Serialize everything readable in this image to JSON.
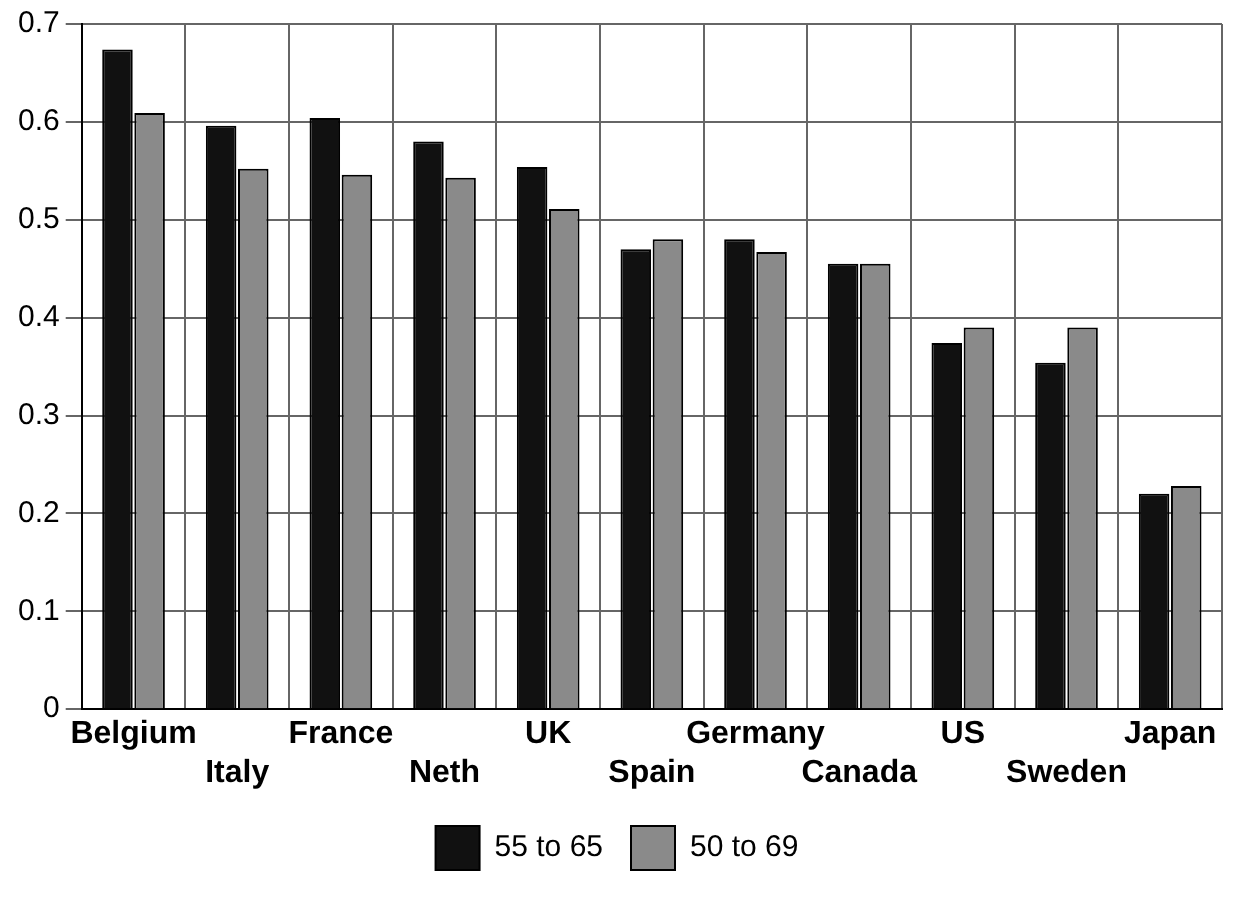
{
  "chart_data": {
    "type": "bar",
    "categories": [
      "Belgium",
      "Italy",
      "France",
      "Neth",
      "UK",
      "Spain",
      "Germany",
      "Canada",
      "US",
      "Sweden",
      "Japan"
    ],
    "series": [
      {
        "name": "55 to 65",
        "color": "#111111",
        "values": [
          0.674,
          0.596,
          0.604,
          0.58,
          0.554,
          0.47,
          0.48,
          0.455,
          0.374,
          0.354,
          0.22
        ]
      },
      {
        "name": "50 to 69",
        "color": "#8a8a8a",
        "values": [
          0.609,
          0.552,
          0.546,
          0.543,
          0.511,
          0.48,
          0.467,
          0.455,
          0.39,
          0.39,
          0.228
        ]
      }
    ],
    "ylim": [
      0,
      0.7
    ],
    "yticks": [
      0,
      0.1,
      0.2,
      0.3,
      0.4,
      0.5,
      0.6,
      0.7
    ],
    "grid": true,
    "legend": "bottom"
  }
}
